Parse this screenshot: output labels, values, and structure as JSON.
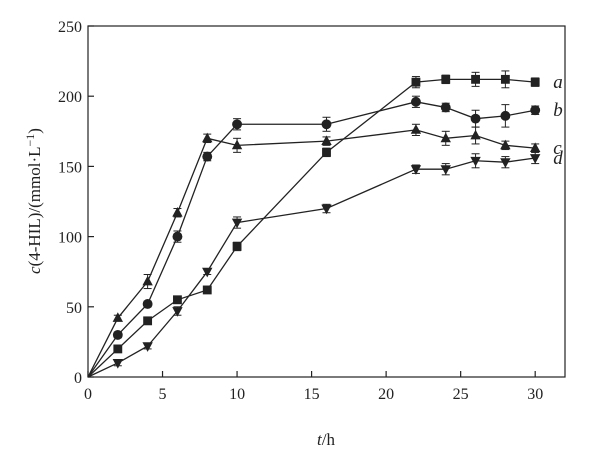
{
  "chart_data": {
    "type": "line",
    "xlabel": {
      "italic": "t",
      "rest": "/h"
    },
    "ylabel": {
      "italic": "c",
      "rest": "(4-HIL)/(mmol·L",
      "sup": "−1",
      "close": ")"
    },
    "xlim": [
      0,
      32
    ],
    "ylim": [
      0,
      250
    ],
    "xticks": [
      0,
      5,
      10,
      15,
      20,
      25,
      30
    ],
    "yticks": [
      0,
      50,
      100,
      150,
      200,
      250
    ],
    "grid": false,
    "color": "#222222",
    "series": [
      {
        "name": "a",
        "marker": "square",
        "x": [
          0,
          2,
          4,
          6,
          8,
          10,
          16,
          22,
          24,
          26,
          28,
          30
        ],
        "y": [
          0,
          20,
          40,
          55,
          62,
          93,
          160,
          210,
          212,
          212,
          212,
          210
        ],
        "err": [
          0,
          2,
          2,
          2,
          2,
          3,
          3,
          4,
          3,
          5,
          6,
          3
        ]
      },
      {
        "name": "b",
        "marker": "circle",
        "x": [
          0,
          2,
          4,
          6,
          8,
          10,
          16,
          22,
          24,
          26,
          28,
          30
        ],
        "y": [
          0,
          30,
          52,
          100,
          157,
          180,
          180,
          196,
          192,
          184,
          186,
          190
        ],
        "err": [
          0,
          2,
          2,
          4,
          3,
          4,
          5,
          4,
          3,
          6,
          8,
          3
        ]
      },
      {
        "name": "c",
        "marker": "triangle-up",
        "x": [
          0,
          2,
          4,
          6,
          8,
          10,
          16,
          22,
          24,
          26,
          28,
          30
        ],
        "y": [
          0,
          42,
          68,
          117,
          170,
          165,
          168,
          176,
          170,
          172,
          165,
          163
        ],
        "err": [
          0,
          2,
          5,
          3,
          3,
          5,
          3,
          4,
          5,
          6,
          3,
          3
        ]
      },
      {
        "name": "d",
        "marker": "triangle-down",
        "x": [
          0,
          2,
          4,
          6,
          8,
          10,
          16,
          22,
          24,
          26,
          28,
          30
        ],
        "y": [
          0,
          10,
          22,
          47,
          75,
          110,
          120,
          148,
          148,
          154,
          153,
          156
        ],
        "err": [
          0,
          2,
          2,
          3,
          2,
          4,
          3,
          3,
          4,
          5,
          4,
          4
        ]
      }
    ]
  }
}
